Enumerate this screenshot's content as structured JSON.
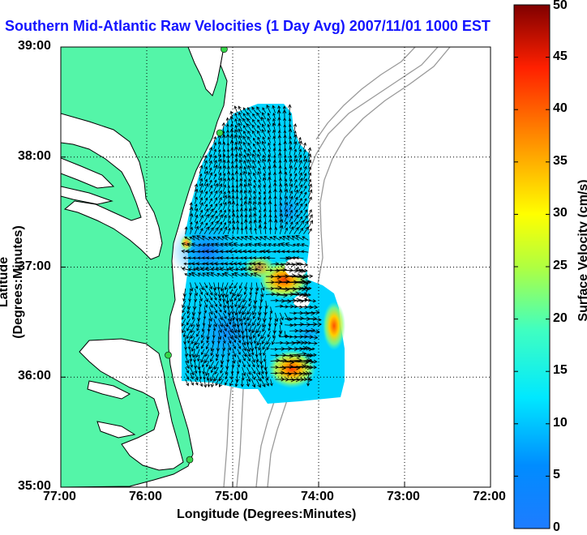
{
  "chart_data": {
    "type": "heatmap",
    "title": "Southern Mid-Atlantic Raw Velocities (1 Day Avg) 2007/11/01 1000 EST",
    "xlabel": "Longitude (Degrees:Minutes)",
    "ylabel": "Latitude (Degrees:Minutes)",
    "x_ticks": [
      "77:00",
      "76:00",
      "75:00",
      "74:00",
      "73:00",
      "72:00"
    ],
    "y_ticks": [
      "39:00",
      "38:00",
      "37:00",
      "36:00",
      "35:00"
    ],
    "xlim": [
      -77,
      -72
    ],
    "ylim": [
      35,
      39
    ],
    "grid": true,
    "colorbar": {
      "label": "Surface Velocity (cm/s)",
      "range": [
        0,
        50
      ],
      "ticks": [
        "0",
        "5",
        "10",
        "15",
        "20",
        "25",
        "30",
        "35",
        "40",
        "45",
        "50"
      ]
    },
    "velocity_field": {
      "lon_range": [
        -75.55,
        -74.1
      ],
      "lat_range": [
        35.95,
        38.4
      ],
      "typical_speed_cm_s": 10,
      "max_speed_cm_s": 40,
      "hotspots": [
        {
          "lon": -74.4,
          "lat": 36.85,
          "speed": 38
        },
        {
          "lon": -74.35,
          "lat": 36.15,
          "speed": 36
        },
        {
          "lon": -74.15,
          "lat": 36.5,
          "speed": 25
        }
      ]
    },
    "stations": [
      {
        "lon": -75.1,
        "lat": 38.98
      },
      {
        "lon": -75.15,
        "lat": 38.22
      },
      {
        "lon": -75.75,
        "lat": 36.2
      },
      {
        "lon": -75.5,
        "lat": 35.25
      }
    ]
  },
  "colors": {
    "land": "#54f5a8",
    "water": "#ffffff",
    "title": "#1414ff",
    "station": "#36d64a",
    "contour": "#9a9a9a"
  }
}
